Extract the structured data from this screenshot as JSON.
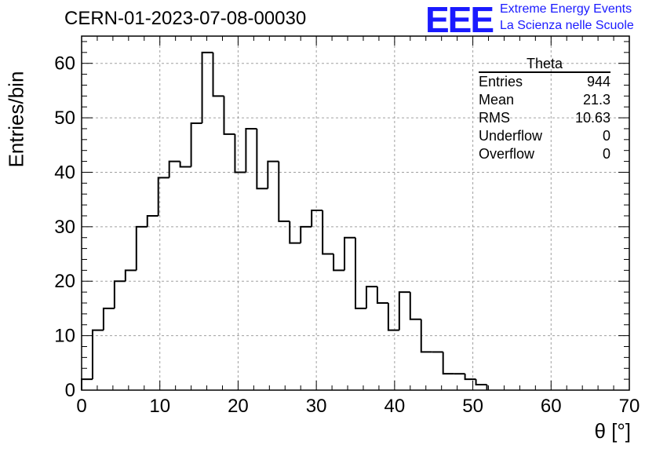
{
  "header": {
    "run_title": "CERN-01-2023-07-08-00030",
    "logo_text": "EEE",
    "logo_line1": "Extreme Energy Events",
    "logo_line2": "La Scienza nelle Scuole",
    "logo_color": "#1a1aff"
  },
  "stats": {
    "title": "Theta",
    "rows": [
      {
        "label": "Entries",
        "value": "944"
      },
      {
        "label": "Mean",
        "value": "21.3"
      },
      {
        "label": "RMS",
        "value": "10.63"
      },
      {
        "label": "Underflow",
        "value": "0"
      },
      {
        "label": "Overflow",
        "value": "0"
      }
    ]
  },
  "chart_data": {
    "type": "bar",
    "histogram": true,
    "title": "CERN-01-2023-07-08-00030",
    "xlabel": "θ [°]",
    "ylabel": "Entries/bin",
    "xlim": [
      0,
      70
    ],
    "ylim": [
      0,
      65
    ],
    "bin_width": 1.4,
    "grid": true,
    "line_color": "#000000",
    "x_ticks": [
      0,
      10,
      20,
      30,
      40,
      50,
      60,
      70
    ],
    "y_ticks": [
      0,
      10,
      20,
      30,
      40,
      50,
      60
    ],
    "bin_edges": [
      0,
      1.4,
      2.8,
      4.2,
      5.6,
      7.0,
      8.4,
      9.8,
      11.2,
      12.6,
      14.0,
      15.4,
      16.8,
      18.2,
      19.6,
      21.0,
      22.4,
      23.8,
      25.2,
      26.6,
      28.0,
      29.4,
      30.8,
      32.2,
      33.6,
      35.0,
      36.4,
      37.8,
      39.2,
      40.6,
      42.0,
      43.4,
      44.8,
      46.2,
      47.6,
      49.0,
      50.4,
      51.8
    ],
    "values": [
      2,
      11,
      15,
      20,
      22,
      30,
      32,
      39,
      42,
      41,
      49,
      62,
      54,
      47,
      40,
      48,
      37,
      42,
      31,
      27,
      30,
      33,
      25,
      22,
      28,
      15,
      19,
      16,
      11,
      18,
      13,
      7,
      7,
      3,
      3,
      2,
      1
    ]
  }
}
